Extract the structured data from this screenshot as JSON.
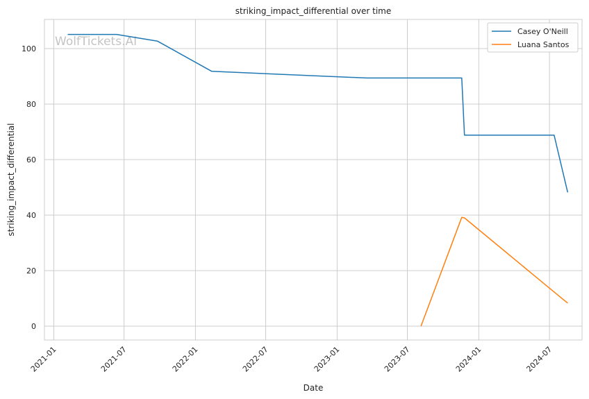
{
  "watermark": "WolfTickets.AI",
  "chart_data": {
    "type": "line",
    "title": "striking_impact_differential over time",
    "xlabel": "Date",
    "ylabel": "striking_impact_differential",
    "x_type": "date",
    "xlim": [
      "2020-12-08",
      "2024-09-23"
    ],
    "ylim": [
      -5,
      110.5
    ],
    "x_ticks": [
      "2021-01",
      "2021-07",
      "2022-01",
      "2022-07",
      "2023-01",
      "2023-07",
      "2024-01",
      "2024-07"
    ],
    "y_ticks": [
      0,
      20,
      40,
      60,
      80,
      100
    ],
    "grid": true,
    "legend": "top-right",
    "series": [
      {
        "name": "Casey O'Neill",
        "color": "#1f77b4",
        "points": [
          {
            "x": "2021-02-06",
            "y": 105.1
          },
          {
            "x": "2021-06-12",
            "y": 105.1
          },
          {
            "x": "2021-09-25",
            "y": 102.7
          },
          {
            "x": "2022-02-12",
            "y": 91.8
          },
          {
            "x": "2023-03-18",
            "y": 89.4
          },
          {
            "x": "2023-11-18",
            "y": 89.4
          },
          {
            "x": "2023-11-25",
            "y": 68.8
          },
          {
            "x": "2024-07-13",
            "y": 68.8
          },
          {
            "x": "2024-08-17",
            "y": 48.2
          }
        ]
      },
      {
        "name": "Luana Santos",
        "color": "#ff7f0e",
        "points": [
          {
            "x": "2023-08-05",
            "y": 0.0
          },
          {
            "x": "2023-11-18",
            "y": 39.2
          },
          {
            "x": "2023-11-25",
            "y": 39.0
          },
          {
            "x": "2024-07-13",
            "y": 12.3
          },
          {
            "x": "2024-08-17",
            "y": 8.3
          }
        ]
      }
    ]
  }
}
